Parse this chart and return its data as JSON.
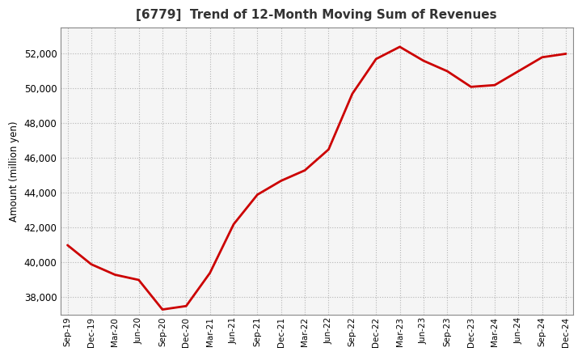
{
  "title": "[6779]  Trend of 12-Month Moving Sum of Revenues",
  "ylabel": "Amount (million yen)",
  "line_color": "#cc0000",
  "line_width": 2.0,
  "background_color": "#ffffff",
  "plot_bg_color": "#f5f5f5",
  "grid_color": "#999999",
  "ylim": [
    37000,
    53500
  ],
  "yticks": [
    38000,
    40000,
    42000,
    44000,
    46000,
    48000,
    50000,
    52000
  ],
  "labels": [
    "Sep-19",
    "Dec-19",
    "Mar-20",
    "Jun-20",
    "Sep-20",
    "Dec-20",
    "Mar-21",
    "Jun-21",
    "Sep-21",
    "Dec-21",
    "Mar-22",
    "Jun-22",
    "Sep-22",
    "Dec-22",
    "Mar-23",
    "Jun-23",
    "Sep-23",
    "Dec-23",
    "Mar-24",
    "Jun-24",
    "Sep-24",
    "Dec-24"
  ],
  "values": [
    41000,
    39900,
    39300,
    39000,
    37300,
    37500,
    39400,
    42200,
    43900,
    44700,
    45300,
    46500,
    49700,
    51700,
    52400,
    51600,
    51000,
    50100,
    50200,
    51000,
    51800,
    52000
  ]
}
